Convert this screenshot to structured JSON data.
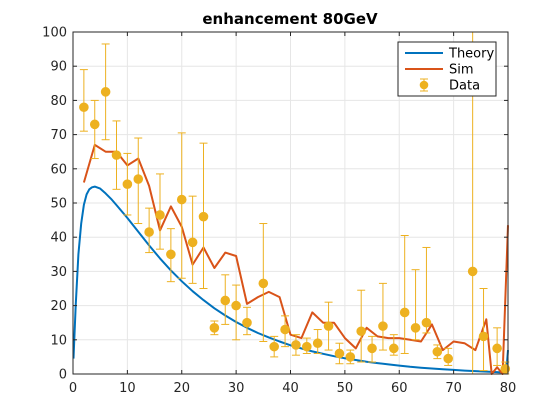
{
  "chart_data": {
    "type": "line",
    "title": "enhancement 80GeV",
    "xlabel": "",
    "ylabel": "",
    "xlim": [
      0,
      80
    ],
    "ylim": [
      0,
      100
    ],
    "xticks": [
      0,
      10,
      20,
      30,
      40,
      50,
      60,
      70,
      80
    ],
    "yticks": [
      0,
      10,
      20,
      30,
      40,
      50,
      60,
      70,
      80,
      90,
      100
    ],
    "grid": true,
    "legend_position": "top-right",
    "series": [
      {
        "name": "Theory",
        "kind": "line",
        "color": "#0072BD",
        "x": [
          0.1,
          0.5,
          1,
          1.5,
          2,
          2.5,
          3,
          3.5,
          4,
          5,
          6,
          7,
          8,
          10,
          12,
          14,
          16,
          18,
          20,
          22,
          24,
          26,
          28,
          30,
          32,
          34,
          36,
          38,
          40,
          42,
          44,
          46,
          48,
          50,
          52,
          54,
          56,
          58,
          60,
          62,
          64,
          66,
          68,
          70,
          72,
          74,
          76,
          78,
          79,
          79.5,
          79.8,
          80
        ],
        "y": [
          4.5,
          20,
          35,
          44,
          49.5,
          52.5,
          54,
          54.6,
          54.8,
          54.2,
          52.8,
          51.2,
          49.4,
          45.6,
          41.6,
          37.6,
          33.8,
          30.3,
          27.1,
          24.2,
          21.6,
          19.2,
          17.1,
          15.2,
          13.5,
          12.0,
          10.7,
          9.5,
          8.4,
          7.5,
          6.6,
          5.9,
          5.2,
          4.6,
          4.1,
          3.6,
          3.2,
          2.8,
          2.45,
          2.1,
          1.85,
          1.6,
          1.4,
          1.2,
          1.0,
          0.85,
          0.7,
          0.55,
          0.45,
          0.4,
          3.0,
          7.0
        ]
      },
      {
        "name": "Sim",
        "kind": "line",
        "color": "#D95319",
        "x": [
          2,
          4,
          6,
          8,
          10,
          12,
          14,
          16,
          18,
          20,
          22,
          24,
          26,
          28,
          30,
          32,
          34,
          36,
          38,
          40,
          42,
          44,
          46,
          48,
          50,
          52,
          54,
          56,
          58,
          60,
          62,
          64,
          66,
          68,
          70,
          72,
          74,
          76,
          77,
          78,
          79,
          80
        ],
        "y": [
          56,
          67,
          65,
          65,
          61,
          63,
          55,
          42,
          49,
          43,
          32,
          37,
          31,
          35.5,
          34.5,
          20.5,
          22.5,
          24,
          22.5,
          11.5,
          10.5,
          18,
          15,
          15,
          10.5,
          7.5,
          13.5,
          11,
          10.5,
          10.5,
          10,
          9.5,
          14.5,
          7,
          9.5,
          9,
          7,
          16,
          0,
          2,
          0,
          43.5
        ]
      },
      {
        "name": "Data",
        "kind": "errorbar",
        "color": "#EDB120",
        "x": [
          2,
          4,
          6,
          8,
          10,
          12,
          14,
          16,
          18,
          20,
          22,
          24,
          26,
          28,
          30,
          32,
          35,
          37,
          39,
          41,
          43,
          45,
          47,
          49,
          51,
          53,
          55,
          57,
          59,
          61,
          63,
          65,
          67,
          69,
          73.5,
          75.5,
          78,
          79.5
        ],
        "y": [
          78,
          73,
          82.5,
          64,
          55.5,
          57,
          41.5,
          46.5,
          35,
          51,
          38.5,
          46,
          13.5,
          21.5,
          20,
          15,
          26.5,
          8,
          13,
          8.5,
          8,
          9,
          14,
          6,
          5,
          12.5,
          7.5,
          14,
          7.5,
          18,
          13.5,
          15,
          6.5,
          4.5,
          30,
          11,
          7.5,
          1.5
        ],
        "err_low": [
          7,
          10,
          14,
          10,
          9,
          13,
          6,
          10,
          8,
          23,
          12,
          21,
          2,
          7,
          10,
          3.5,
          17,
          3,
          5,
          3,
          2,
          3,
          7,
          3,
          2,
          9,
          4,
          7,
          2,
          12,
          3.5,
          3,
          2,
          2,
          30,
          10,
          5,
          1.5
        ],
        "err_high": [
          11,
          7,
          14,
          10,
          9,
          12,
          7,
          12,
          7.5,
          19.5,
          13.5,
          21.5,
          2,
          7.5,
          6,
          4.5,
          17.5,
          3,
          4,
          3,
          2.5,
          4,
          7,
          3,
          2,
          12,
          3.5,
          12.5,
          4,
          22.5,
          17,
          22,
          2,
          3,
          70,
          14,
          6,
          2
        ]
      }
    ]
  }
}
